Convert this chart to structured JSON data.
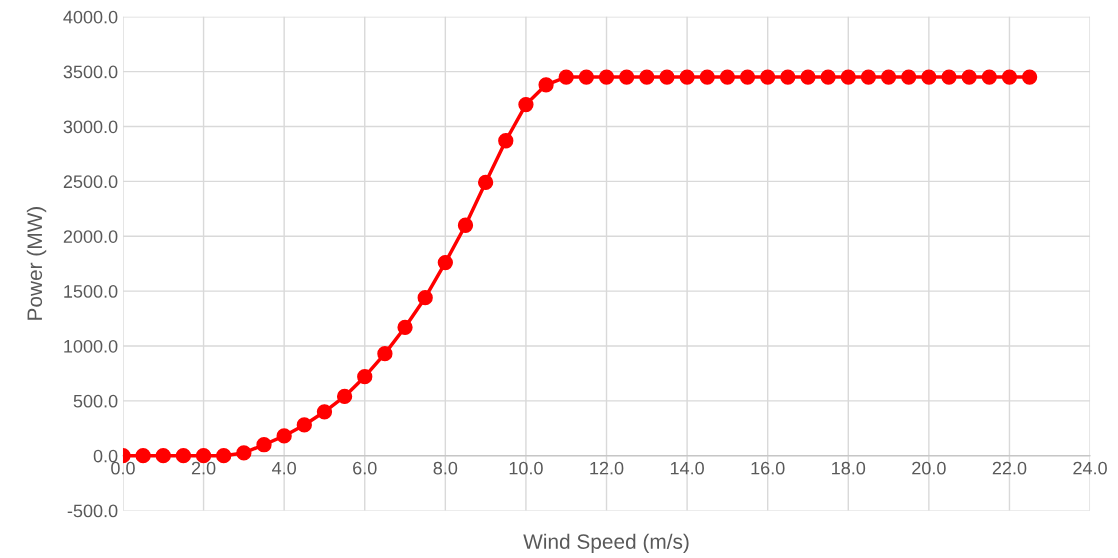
{
  "chart_data": {
    "type": "line",
    "xlabel": "Wind Speed (m/s)",
    "ylabel": "Power (MW)",
    "x": [
      0,
      0.5,
      1,
      1.5,
      2,
      2.5,
      3,
      3.5,
      4,
      4.5,
      5,
      5.5,
      6,
      6.5,
      7,
      7.5,
      8,
      8.5,
      9,
      9.5,
      10,
      10.5,
      11,
      11.5,
      12,
      12.5,
      13,
      13.5,
      14,
      14.5,
      15,
      15.5,
      16,
      16.5,
      17,
      17.5,
      18,
      18.5,
      19,
      19.5,
      20,
      20.5,
      21,
      21.5,
      22,
      22.5
    ],
    "series": [
      {
        "color": "#ff0000",
        "values": [
          0,
          0,
          0,
          0,
          0,
          0,
          25,
          100,
          180,
          280,
          400,
          540,
          720,
          930,
          1170,
          1440,
          1760,
          2100,
          2490,
          2870,
          3200,
          3380,
          3450,
          3450,
          3450,
          3450,
          3450,
          3450,
          3450,
          3450,
          3450,
          3450,
          3450,
          3450,
          3450,
          3450,
          3450,
          3450,
          3450,
          3450,
          3450,
          3450,
          3450,
          3450,
          3450,
          3450
        ]
      }
    ],
    "xlim": [
      0,
      24
    ],
    "xticks": [
      {
        "value": 0,
        "label": "0.0"
      },
      {
        "value": 2,
        "label": "2.0"
      },
      {
        "value": 4,
        "label": "4.0"
      },
      {
        "value": 6,
        "label": "6.0"
      },
      {
        "value": 8,
        "label": "8.0"
      },
      {
        "value": 10,
        "label": "10.0"
      },
      {
        "value": 12,
        "label": "12.0"
      },
      {
        "value": 14,
        "label": "14.0"
      },
      {
        "value": 16,
        "label": "16.0"
      },
      {
        "value": 18,
        "label": "18.0"
      },
      {
        "value": 20,
        "label": "20.0"
      },
      {
        "value": 22,
        "label": "22.0"
      },
      {
        "value": 24,
        "label": "24.0"
      }
    ],
    "ylim": [
      -500,
      4000
    ],
    "yticks": [
      {
        "value": -500,
        "label": "-500.0"
      },
      {
        "value": 0,
        "label": "0.0"
      },
      {
        "value": 500,
        "label": "500.0"
      },
      {
        "value": 1000,
        "label": "1000.0"
      },
      {
        "value": 1500,
        "label": "1500.0"
      },
      {
        "value": 2000,
        "label": "2000.0"
      },
      {
        "value": 2500,
        "label": "2500.0"
      },
      {
        "value": 3000,
        "label": "3000.0"
      },
      {
        "value": 3500,
        "label": "3500.0"
      },
      {
        "value": 4000,
        "label": "4000.0"
      }
    ],
    "grid": true,
    "marker": "circle",
    "line_style": "solid"
  }
}
